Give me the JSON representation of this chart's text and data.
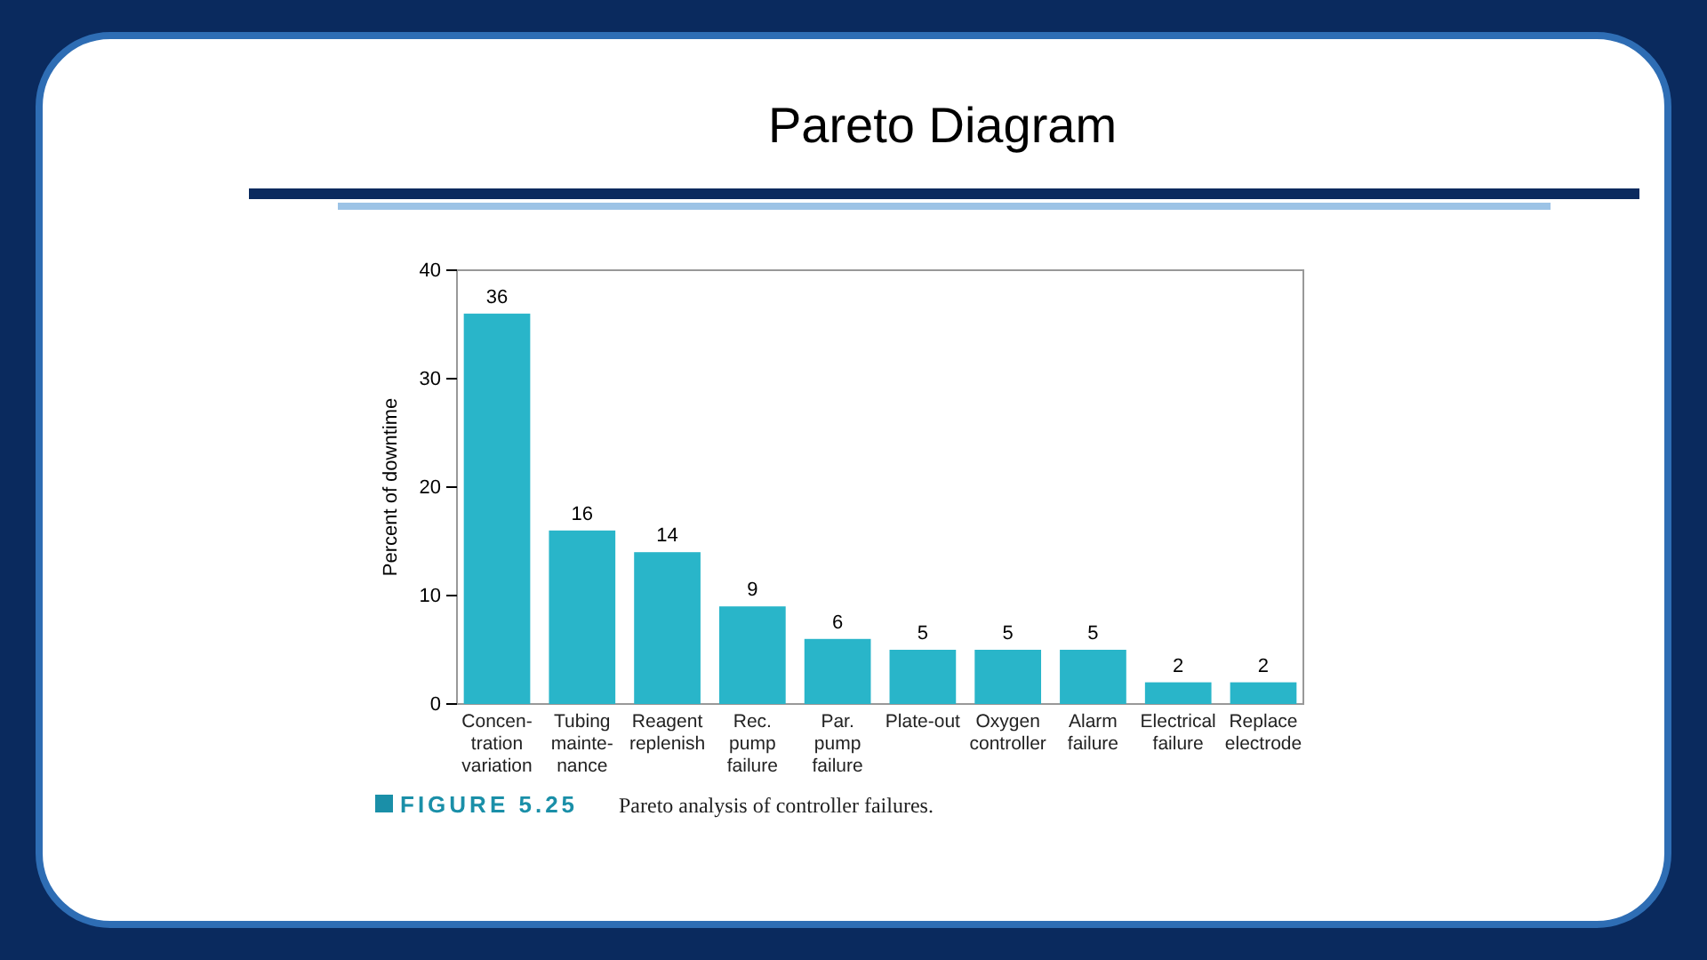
{
  "chart_data": {
    "type": "bar",
    "title": "Pareto Diagram",
    "ylabel": "Percent of downtime",
    "categories": [
      "Concen-\ntration\nvariation",
      "Tubing\nmainte-\nnance",
      "Reagent\nreplenish",
      "Rec.\npump\nfailure",
      "Par.\npump\nfailure",
      "Plate-out",
      "Oxygen\ncontroller",
      "Alarm\nfailure",
      "Electrical\nfailure",
      "Replace\nelectrode"
    ],
    "values": [
      36,
      16,
      14,
      9,
      6,
      5,
      5,
      5,
      2,
      2
    ],
    "color": "#29b5c9",
    "ylim": [
      0,
      40
    ],
    "yticks": [
      0,
      10,
      20,
      30,
      40
    ],
    "grid": false,
    "data_labels": true,
    "annotations": [
      "FIGURE 5.25",
      "Pareto analysis of controller failures."
    ]
  }
}
